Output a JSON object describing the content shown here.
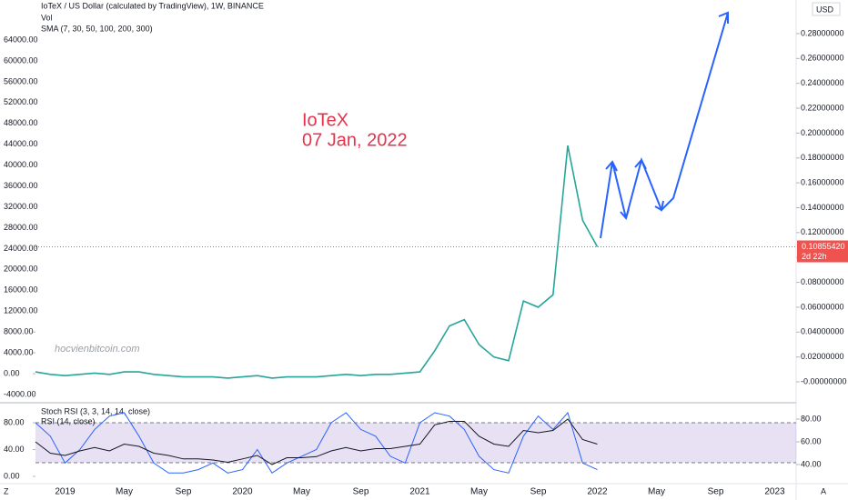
{
  "chart_data": [
    {
      "type": "line",
      "title": "IoTeX / US Dollar (calculated by TradingView), 1W, BINANCE",
      "subtitle_lines": [
        "Vol",
        "SMA (7, 30, 50, 100, 200, 300)"
      ],
      "annotations": [
        "IoTeX",
        "07 Jan, 2022"
      ],
      "watermark": "hocvienbitcoin.com",
      "currency": "USD",
      "last_price": {
        "value": 0.1085542,
        "label": "0.10855420"
      },
      "countdown": "2d 22h",
      "corner_labels": [
        "Z",
        "A"
      ],
      "categories": [
        null,
        null,
        "2019",
        null,
        null,
        null,
        "May",
        null,
        null,
        null,
        "Sep",
        null,
        null,
        null,
        "2020",
        null,
        null,
        null,
        "May",
        null,
        null,
        null,
        "Sep",
        null,
        null,
        null,
        "2021",
        null,
        null,
        null,
        "May",
        null,
        null,
        null,
        "Sep",
        null,
        null,
        null,
        "2022",
        null,
        null,
        null,
        "May",
        null,
        null,
        null,
        "Sep",
        null,
        null,
        null,
        "2023",
        null
      ],
      "color": "#26a69a",
      "values": [
        0.008,
        0.006,
        0.005,
        0.006,
        0.007,
        0.006,
        0.008,
        0.008,
        0.006,
        0.005,
        0.004,
        0.004,
        0.004,
        0.003,
        0.004,
        0.005,
        0.003,
        0.004,
        0.004,
        0.004,
        0.005,
        0.006,
        0.005,
        0.006,
        0.006,
        0.007,
        0.008,
        0.025,
        0.045,
        0.05,
        0.03,
        0.02,
        0.017,
        0.065,
        0.06,
        0.07,
        0.19,
        0.13,
        0.1085542,
        null,
        null,
        null,
        null,
        null,
        null,
        null,
        null,
        null,
        null,
        null,
        null,
        null
      ],
      "ylim": [
        -0.0146,
        0.2997
      ],
      "yticks": [
        {
          "value": 0.28,
          "label": "0.28000000"
        },
        {
          "value": 0.26,
          "label": "0.26000000"
        },
        {
          "value": 0.24,
          "label": "0.24000000"
        },
        {
          "value": 0.22,
          "label": "0.22000000"
        },
        {
          "value": 0.2,
          "label": "0.20000000"
        },
        {
          "value": 0.18,
          "label": "0.18000000"
        },
        {
          "value": 0.16,
          "label": "0.16000000"
        },
        {
          "value": 0.14,
          "label": "0.14000000"
        },
        {
          "value": 0.12,
          "label": "0.12000000"
        },
        {
          "value": 0.1,
          "label": "0.10000000"
        },
        {
          "value": 0.08,
          "label": "0.08000000"
        },
        {
          "value": 0.06,
          "label": "0.06000000"
        },
        {
          "value": 0.04,
          "label": "0.04000000"
        },
        {
          "value": 0.02,
          "label": "0.02000000"
        },
        {
          "value": 0,
          "label": "-0.00000000"
        }
      ],
      "y2lim": [
        -5046,
        69928
      ],
      "y2ticks": [
        {
          "value": 64000,
          "label": "64000.00"
        },
        {
          "value": 60000,
          "label": "60000.00"
        },
        {
          "value": 56000,
          "label": "56000.00"
        },
        {
          "value": 52000,
          "label": "52000.00"
        },
        {
          "value": 48000,
          "label": "48000.00"
        },
        {
          "value": 44000,
          "label": "44000.00"
        },
        {
          "value": 40000,
          "label": "40000.00"
        },
        {
          "value": 36000,
          "label": "36000.00"
        },
        {
          "value": 32000,
          "label": "32000.00"
        },
        {
          "value": 28000,
          "label": "28000.00"
        },
        {
          "value": 24000,
          "label": "24000.00"
        },
        {
          "value": 20000,
          "label": "20000.00"
        },
        {
          "value": 16000,
          "label": "16000.00"
        },
        {
          "value": 12000,
          "label": "12000.00"
        },
        {
          "value": 8000,
          "label": "8000.00"
        },
        {
          "value": 4000,
          "label": "4000.00"
        },
        {
          "value": 0,
          "label": "0.00"
        },
        {
          "value": -4000,
          "label": "-4000.00"
        }
      ]
    },
    {
      "type": "line",
      "series": [
        {
          "name": "Stoch RSI (3, 3, 14, 14, close)",
          "color": "#2962ff",
          "values": [
            80,
            60,
            20,
            40,
            70,
            90,
            95,
            60,
            20,
            5,
            5,
            10,
            20,
            5,
            10,
            40,
            5,
            20,
            30,
            40,
            80,
            95,
            70,
            60,
            30,
            20,
            80,
            95,
            90,
            70,
            30,
            10,
            5,
            60,
            90,
            70,
            95,
            20,
            10,
            null,
            null,
            null,
            null,
            null,
            null,
            null,
            null,
            null,
            null,
            null,
            null,
            null
          ]
        },
        {
          "name": "RSI (14, close)",
          "color": "#131722",
          "axis": "y2",
          "values": [
            60,
            50,
            48,
            52,
            55,
            52,
            58,
            56,
            50,
            48,
            45,
            45,
            44,
            42,
            45,
            48,
            40,
            46,
            46,
            47,
            52,
            55,
            52,
            54,
            54,
            56,
            58,
            75,
            78,
            78,
            65,
            58,
            56,
            70,
            68,
            70,
            80,
            62,
            58,
            null,
            null,
            null,
            null,
            null,
            null,
            null,
            null,
            null,
            null,
            null,
            null,
            null
          ]
        }
      ],
      "ylim": [
        -17.6,
        105.8
      ],
      "yticks": [
        {
          "value": 80,
          "label": "80.00"
        },
        {
          "value": 40,
          "label": "40.00"
        },
        {
          "value": 0,
          "label": "0.00"
        }
      ],
      "y2lim": [
        19.2,
        92
      ],
      "y2ticks": [
        {
          "value": 80,
          "label": "80.00"
        },
        {
          "value": 60,
          "label": "60.00"
        },
        {
          "value": 40,
          "label": "40.00"
        }
      ]
    }
  ]
}
